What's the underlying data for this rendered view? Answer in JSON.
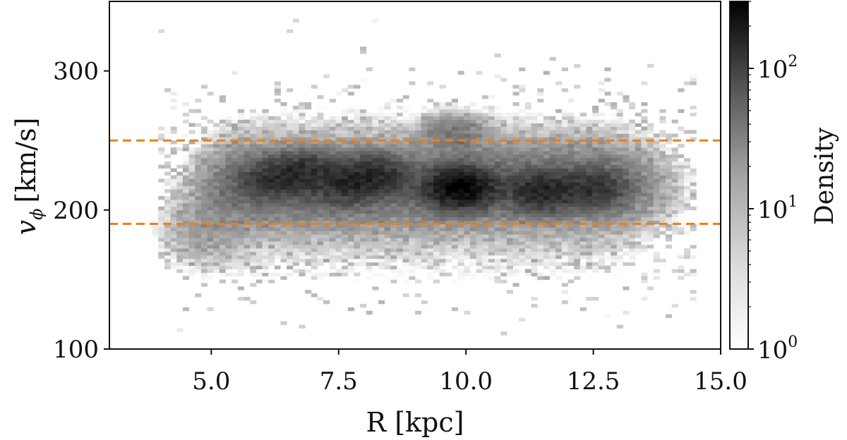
{
  "chart_data": {
    "type": "heatmap",
    "xlabel": "R [kpc]",
    "ylabel": "v",
    "ylabel_sub": "ϕ",
    "ylabel_unit": "[km/s]",
    "xlim": [
      3.0,
      15.0
    ],
    "ylim": [
      100,
      350
    ],
    "xticks": [
      5.0,
      7.5,
      10.0,
      12.5,
      15.0
    ],
    "xtick_labels": [
      "5.0",
      "7.5",
      "10.0",
      "12.5",
      "15.0"
    ],
    "yticks": [
      100,
      200,
      300
    ],
    "ytick_labels": [
      "100",
      "200",
      "300"
    ],
    "hlines": [
      {
        "y": 250,
        "style": "dashed",
        "color": "#f07f12"
      },
      {
        "y": 190,
        "style": "dashed",
        "color": "#f07f12"
      }
    ],
    "colorbar": {
      "label": "Density",
      "scale": "log",
      "range": [
        1,
        300
      ],
      "ticks": [
        1,
        10,
        100
      ],
      "tick_bases": [
        "10",
        "10",
        "10"
      ],
      "tick_exponents": [
        "0",
        "1",
        "2"
      ],
      "colormap": "Greys"
    },
    "density_peaks": [
      {
        "R": 6.2,
        "v": 222,
        "density": 60
      },
      {
        "R": 6.8,
        "v": 228,
        "density": 80
      },
      {
        "R": 7.6,
        "v": 218,
        "density": 70
      },
      {
        "R": 8.2,
        "v": 225,
        "density": 90
      },
      {
        "R": 9.9,
        "v": 216,
        "density": 250
      },
      {
        "R": 11.5,
        "v": 214,
        "density": 110
      },
      {
        "R": 12.5,
        "v": 216,
        "density": 70
      },
      {
        "R": 9.8,
        "v": 255,
        "density": 15
      }
    ],
    "grid": false
  }
}
